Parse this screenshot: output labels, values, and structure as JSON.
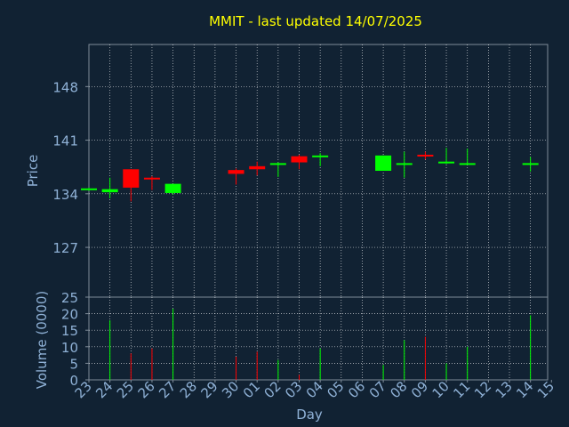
{
  "chart_data": [
    {
      "type": "candlestick",
      "title": "MMIT - last updated 14/07/2025",
      "ylabel": "Price",
      "ylim": [
        120.5,
        153.5
      ],
      "yticks": [
        127,
        134,
        141,
        148
      ],
      "grid": true,
      "x_tick_labels": [
        "23",
        "24",
        "25",
        "26",
        "27",
        "28",
        "29",
        "30",
        "01",
        "02",
        "03",
        "04",
        "05",
        "06",
        "07",
        "08",
        "09",
        "10",
        "11",
        "12",
        "13",
        "14",
        "15"
      ],
      "colors": {
        "up": "#00ff00",
        "down": "#ff0000",
        "background": "#112233",
        "grid": "#ffffff",
        "axis_text": "#8fb1d6",
        "title": "#ffff00"
      },
      "candles": [
        {
          "day": "23",
          "open": 134.6,
          "high": 134.8,
          "low": 134.4,
          "close": 134.7
        },
        {
          "day": "24",
          "open": 134.2,
          "high": 136.1,
          "low": 133.4,
          "close": 134.6
        },
        {
          "day": "25",
          "open": 137.2,
          "high": 137.2,
          "low": 133.0,
          "close": 134.8
        },
        {
          "day": "26",
          "open": 136.1,
          "high": 136.3,
          "low": 134.5,
          "close": 135.9
        },
        {
          "day": "27",
          "open": 134.1,
          "high": 135.3,
          "low": 133.9,
          "close": 135.3
        },
        {
          "day": "30",
          "open": 137.1,
          "high": 137.3,
          "low": 135.2,
          "close": 136.6
        },
        {
          "day": "01",
          "open": 137.6,
          "high": 138.2,
          "low": 136.4,
          "close": 137.2
        },
        {
          "day": "02",
          "open": 137.9,
          "high": 138.1,
          "low": 136.2,
          "close": 138.0
        },
        {
          "day": "03",
          "open": 138.9,
          "high": 139.1,
          "low": 137.2,
          "close": 138.1
        },
        {
          "day": "04",
          "open": 138.8,
          "high": 139.3,
          "low": 137.6,
          "close": 139.0
        },
        {
          "day": "07",
          "open": 137.0,
          "high": 139.0,
          "low": 137.0,
          "close": 139.0
        },
        {
          "day": "08",
          "open": 137.9,
          "high": 139.5,
          "low": 136.1,
          "close": 138.0
        },
        {
          "day": "09",
          "open": 139.1,
          "high": 139.5,
          "low": 138.5,
          "close": 138.9
        },
        {
          "day": "10",
          "open": 138.0,
          "high": 140.0,
          "low": 137.9,
          "close": 138.2
        },
        {
          "day": "11",
          "open": 137.9,
          "high": 139.9,
          "low": 137.8,
          "close": 138.0
        },
        {
          "day": "14",
          "open": 137.8,
          "high": 138.8,
          "low": 136.9,
          "close": 138.0
        }
      ]
    },
    {
      "type": "bar",
      "ylabel": "Volume (0000)",
      "xlabel": "Day",
      "ylim": [
        0,
        25
      ],
      "yticks": [
        0,
        5,
        10,
        15,
        20,
        25
      ],
      "grid": true,
      "categories": [
        "24",
        "25",
        "26",
        "27",
        "30",
        "01",
        "02",
        "03",
        "04",
        "07",
        "08",
        "09",
        "10",
        "11",
        "14"
      ],
      "values": [
        18,
        8,
        9.5,
        21.5,
        7,
        8.5,
        6,
        1.5,
        9.5,
        4.5,
        12,
        13,
        5,
        10,
        19.5
      ],
      "directions": [
        "up",
        "down",
        "down",
        "up",
        "down",
        "down",
        "up",
        "down",
        "up",
        "up",
        "up",
        "down",
        "up",
        "up",
        "up"
      ]
    }
  ]
}
